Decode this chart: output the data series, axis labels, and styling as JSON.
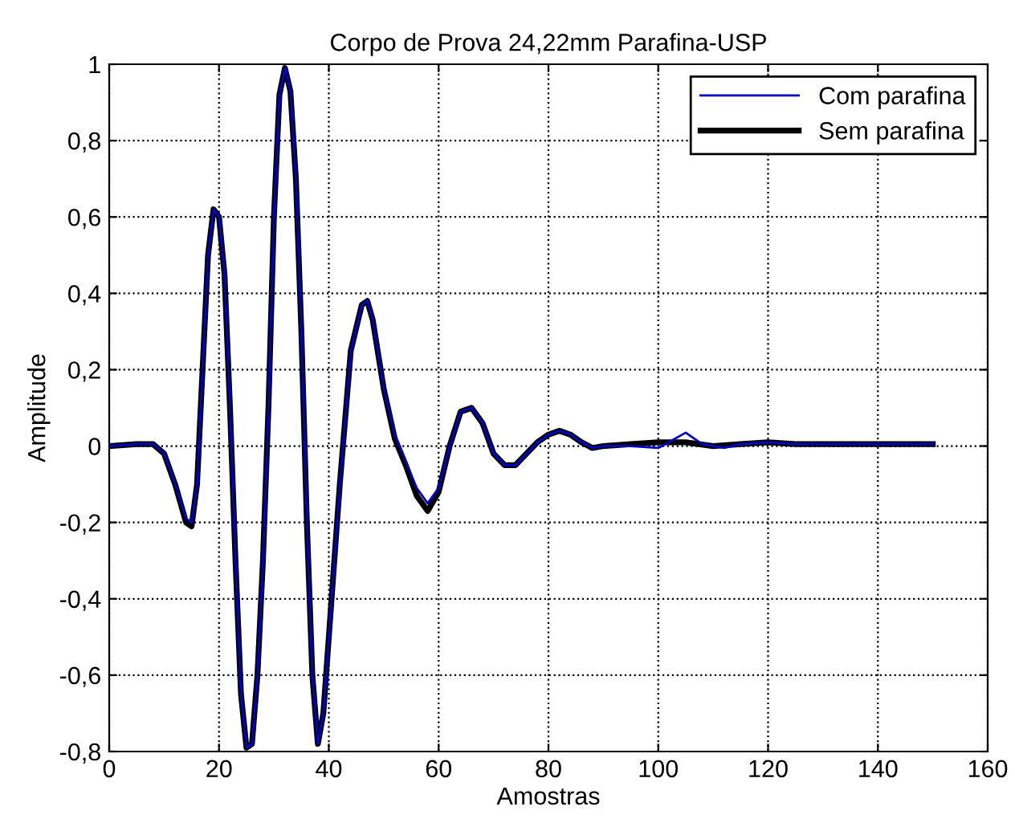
{
  "chart_data": {
    "type": "line",
    "title": "Corpo de Prova 24,22mm Parafina-USP",
    "xlabel": "Amostras",
    "ylabel": "Amplitude",
    "xlim": [
      0,
      160
    ],
    "ylim": [
      -0.8,
      1
    ],
    "xticks": [
      0,
      20,
      40,
      60,
      80,
      100,
      120,
      140,
      160
    ],
    "yticks": [
      {
        "value": -0.8,
        "label": "-0,8"
      },
      {
        "value": -0.6,
        "label": "-0,6"
      },
      {
        "value": -0.4,
        "label": "-0,4"
      },
      {
        "value": -0.2,
        "label": "-0,2"
      },
      {
        "value": 0,
        "label": "0"
      },
      {
        "value": 0.2,
        "label": "0,2"
      },
      {
        "value": 0.4,
        "label": "0,4"
      },
      {
        "value": 0.6,
        "label": "0,6"
      },
      {
        "value": 0.8,
        "label": "0,8"
      },
      {
        "value": 1,
        "label": "1"
      }
    ],
    "grid": true,
    "legend": "top right",
    "line_style": "solid",
    "series": [
      {
        "name": "Com parafina",
        "color": "#0000cc",
        "x": [
          0,
          5,
          8,
          10,
          12,
          14,
          15,
          16,
          17,
          18,
          19,
          20,
          21,
          22,
          23,
          24,
          25,
          26,
          27,
          28,
          29,
          30,
          31,
          32,
          33,
          34,
          35,
          36,
          37,
          38,
          39,
          40,
          42,
          44,
          46,
          47,
          48,
          50,
          52,
          54,
          56,
          58,
          60,
          62,
          64,
          66,
          68,
          70,
          72,
          74,
          76,
          78,
          80,
          82,
          84,
          86,
          88,
          90,
          95,
          100,
          105,
          108,
          112,
          115,
          120,
          125,
          130,
          140,
          150
        ],
        "values": [
          0,
          0.005,
          0.005,
          -0.02,
          -0.1,
          -0.19,
          -0.2,
          -0.1,
          0.2,
          0.5,
          0.62,
          0.6,
          0.45,
          0.1,
          -0.3,
          -0.65,
          -0.79,
          -0.78,
          -0.6,
          -0.3,
          0.1,
          0.6,
          0.92,
          0.99,
          0.93,
          0.7,
          0.3,
          -0.2,
          -0.6,
          -0.78,
          -0.7,
          -0.5,
          -0.1,
          0.25,
          0.37,
          0.38,
          0.33,
          0.15,
          0.03,
          -0.04,
          -0.11,
          -0.15,
          -0.11,
          0.0,
          0.09,
          0.1,
          0.06,
          -0.02,
          -0.05,
          -0.05,
          -0.02,
          0.01,
          0.03,
          0.04,
          0.03,
          0.01,
          -0.005,
          0.0,
          0.0,
          -0.005,
          0.035,
          0.005,
          -0.005,
          0.005,
          0.01,
          0.005,
          0.005,
          0.005,
          0.005
        ]
      },
      {
        "name": "Sem parafina",
        "color": "#000000",
        "x": [
          0,
          5,
          8,
          10,
          12,
          14,
          15,
          16,
          17,
          18,
          19,
          20,
          21,
          22,
          23,
          24,
          25,
          26,
          27,
          28,
          29,
          30,
          31,
          32,
          33,
          34,
          35,
          36,
          37,
          38,
          39,
          40,
          42,
          44,
          46,
          47,
          48,
          50,
          52,
          54,
          56,
          58,
          60,
          62,
          64,
          66,
          68,
          70,
          72,
          74,
          76,
          78,
          80,
          82,
          84,
          86,
          88,
          90,
          95,
          100,
          105,
          110,
          115,
          120,
          125,
          130,
          140,
          150
        ],
        "values": [
          0,
          0.005,
          0.005,
          -0.02,
          -0.1,
          -0.2,
          -0.21,
          -0.1,
          0.2,
          0.5,
          0.62,
          0.6,
          0.45,
          0.1,
          -0.3,
          -0.65,
          -0.79,
          -0.78,
          -0.6,
          -0.3,
          0.1,
          0.6,
          0.92,
          0.99,
          0.93,
          0.7,
          0.3,
          -0.2,
          -0.6,
          -0.78,
          -0.7,
          -0.5,
          -0.1,
          0.25,
          0.37,
          0.38,
          0.33,
          0.15,
          0.02,
          -0.05,
          -0.13,
          -0.17,
          -0.12,
          0.0,
          0.09,
          0.1,
          0.06,
          -0.02,
          -0.05,
          -0.05,
          -0.02,
          0.01,
          0.03,
          0.04,
          0.03,
          0.01,
          -0.005,
          0.0,
          0.005,
          0.01,
          0.01,
          0.0,
          0.005,
          0.01,
          0.005,
          0.005,
          0.005,
          0.005
        ]
      }
    ]
  }
}
